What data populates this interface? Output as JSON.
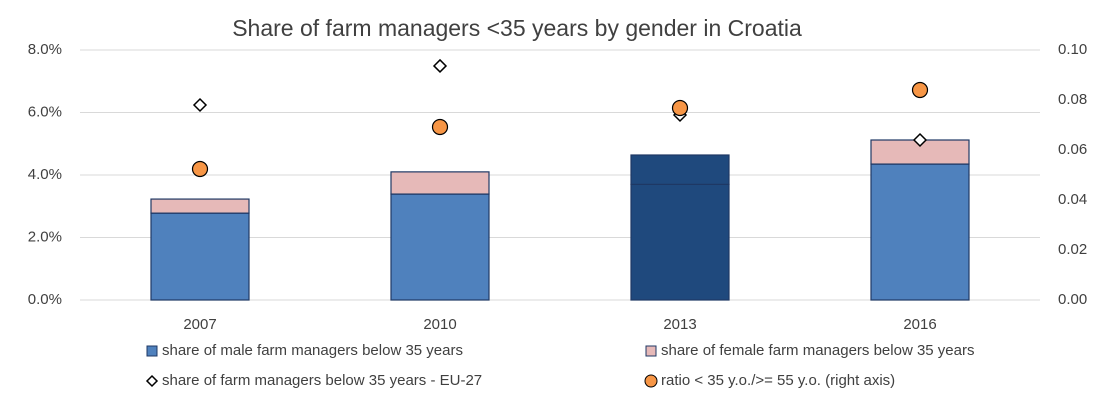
{
  "chart_data": {
    "type": "bar",
    "title": "Share of farm managers <35 years by gender in Croatia",
    "categories": [
      "2007",
      "2010",
      "2013",
      "2016"
    ],
    "series": [
      {
        "name": "share of male farm managers below 35 years",
        "color": "#4f81bd",
        "colors": [
          "#4f81bd",
          "#4f81bd",
          "#1f497d",
          "#4f81bd"
        ],
        "values": [
          2.78,
          3.39,
          3.7,
          4.35
        ]
      },
      {
        "name": "share of female farm managers below 35 years",
        "color": "#e6b9b8",
        "colors": [
          "#e6b9b8",
          "#e6b9b8",
          "#1f497d",
          "#e6b9b8"
        ],
        "values": [
          0.45,
          0.71,
          0.94,
          0.77
        ]
      },
      {
        "name": "share of farm managers below 35 years - EU-27",
        "color": "#ffffff",
        "marker": "diamond",
        "values": [
          6.24,
          7.49,
          5.92,
          5.12
        ]
      },
      {
        "name": "ratio < 35 y.o./>= 55 y.o. (right axis)",
        "color": "#f79646",
        "marker": "circle",
        "axis": "y2",
        "values": [
          0.0524,
          0.0692,
          0.0768,
          0.084
        ]
      }
    ],
    "ylim": [
      0,
      8
    ],
    "yticks": [
      {
        "value": 0,
        "label": "0.0%"
      },
      {
        "value": 2,
        "label": "2.0%"
      },
      {
        "value": 4,
        "label": "4.0%"
      },
      {
        "value": 6,
        "label": "6.0%"
      },
      {
        "value": 8,
        "label": "8.0%"
      }
    ],
    "y2lim": [
      0,
      0.1
    ],
    "y2ticks": [
      {
        "value": 0,
        "label": "0.00"
      },
      {
        "value": 0.02,
        "label": "0.02"
      },
      {
        "value": 0.04,
        "label": "0.04"
      },
      {
        "value": 0.06,
        "label": "0.06"
      },
      {
        "value": 0.08,
        "label": "0.08"
      },
      {
        "value": 0.1,
        "label": "0.10"
      }
    ],
    "grid": true
  }
}
